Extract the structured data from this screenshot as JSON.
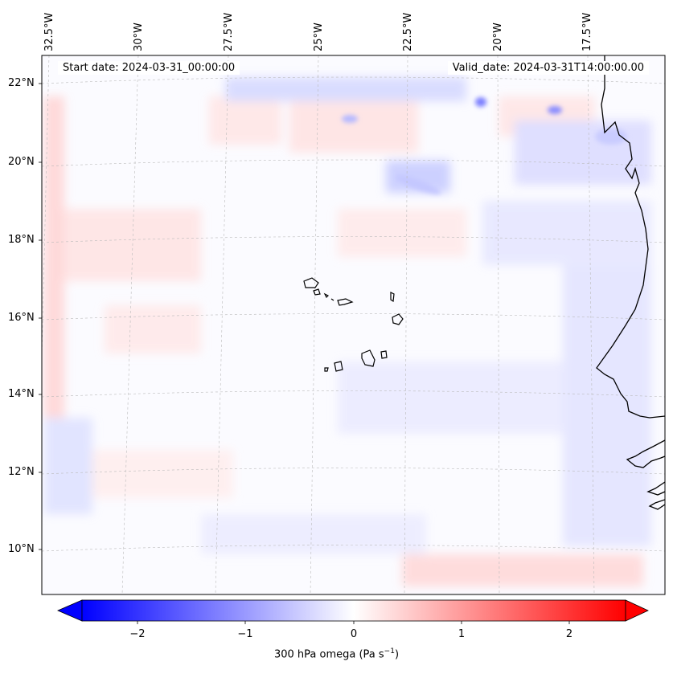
{
  "map": {
    "type": "contour-map",
    "variable_label": "300 hPa omega (Pa s",
    "variable_unit_superscript": "−1",
    "variable_label_close": ")",
    "start_date_label": "Start date: 2024-03-31_00:00:00",
    "valid_date_label": "Valid_date: 2024-03-31T14:00:00.00",
    "lon_labels": [
      "32.5°W",
      "30°W",
      "27.5°W",
      "25°W",
      "22.5°W",
      "20°W",
      "17.5°W"
    ],
    "lat_labels": [
      "22°N",
      "20°N",
      "18°N",
      "16°N",
      "14°N",
      "12°N",
      "10°N"
    ],
    "gridlines": true,
    "projection": "conic"
  },
  "colorbar": {
    "ticks": [
      "−2",
      "−1",
      "0",
      "1",
      "2"
    ],
    "range": [
      -2.75,
      2.75
    ],
    "extend": "both",
    "colors": {
      "min": "#0000ff",
      "mid": "#ffffff",
      "max": "#ff0000"
    }
  },
  "features": [
    "Cape Verde islands",
    "West African coastline"
  ]
}
